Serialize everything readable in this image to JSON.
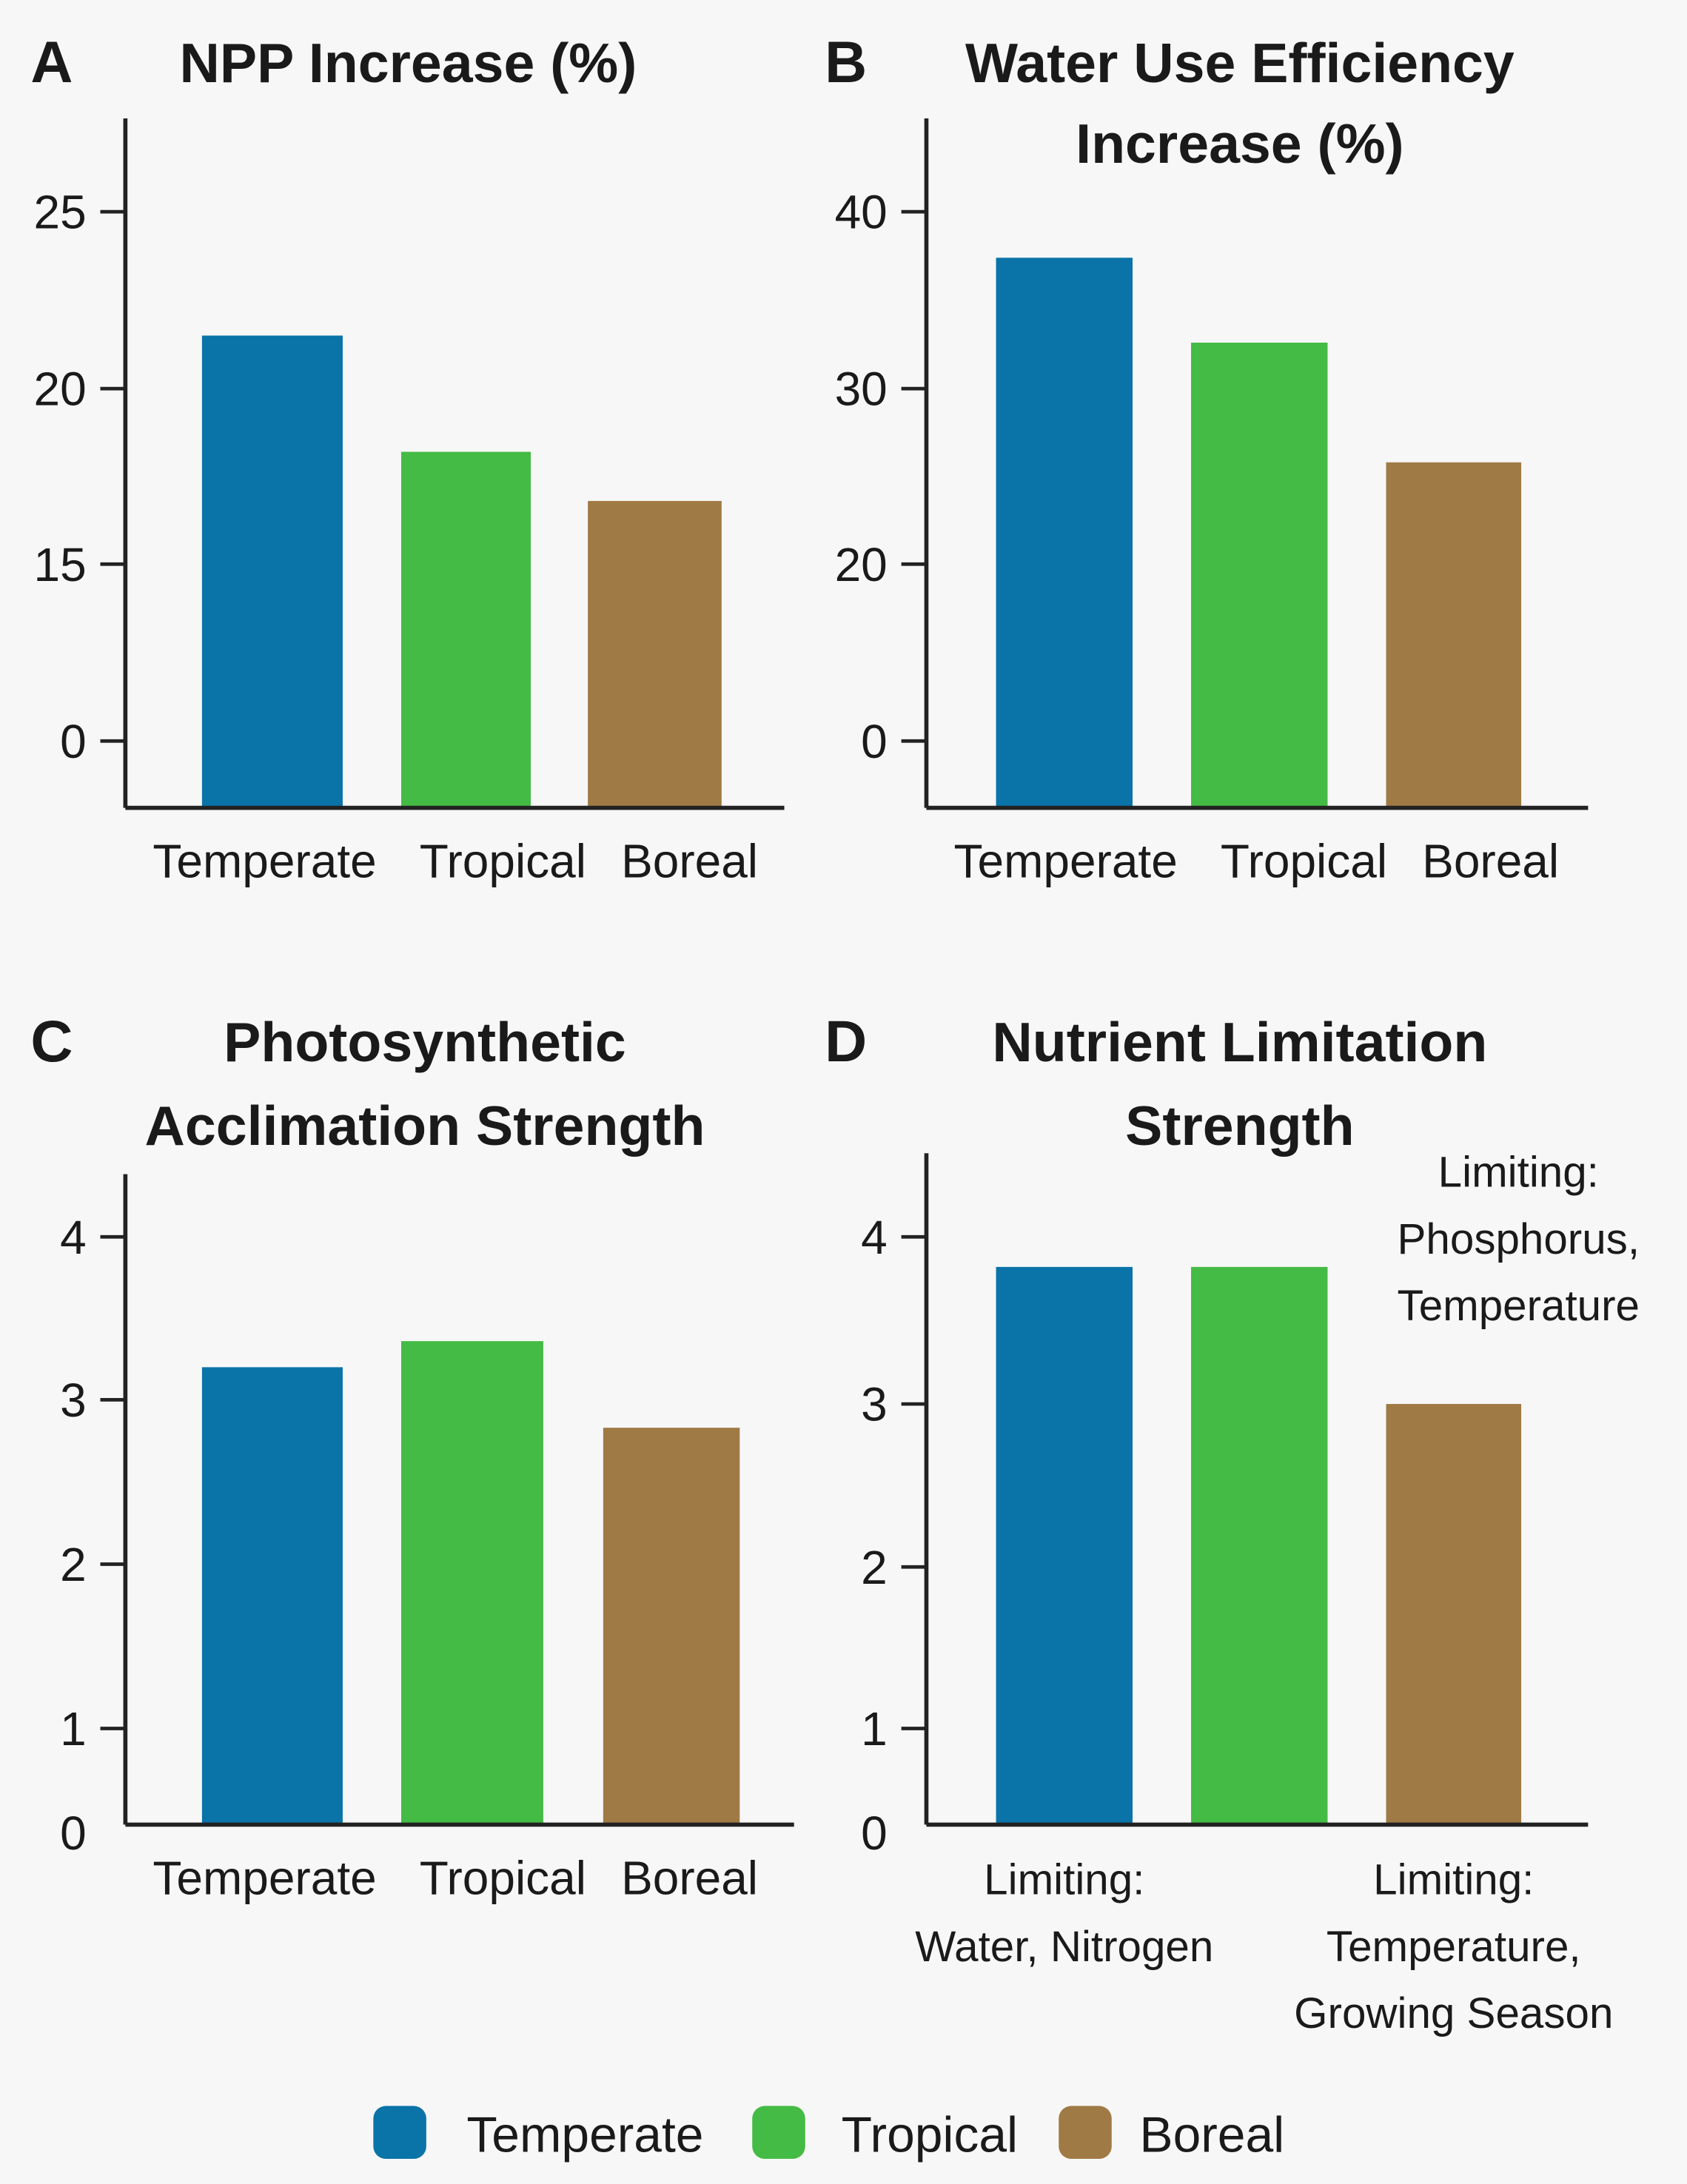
{
  "colors": {
    "Temperate": "#0a73a8",
    "Tropical": "#44bb44",
    "Boreal": "#a07a45",
    "background": "#f7f7f7"
  },
  "legend": [
    "Temperate",
    "Tropical",
    "Boreal"
  ],
  "chart_data": [
    {
      "type": "bar",
      "panel": "A",
      "title": [
        "NPP Increase (%)"
      ],
      "categories": [
        "Temperate",
        "Tropical",
        "Boreal"
      ],
      "xlabels": [
        "Temperate",
        "Tropical",
        "Boreal"
      ],
      "values": [
        21.5,
        18.2,
        16.8
      ],
      "yticks": [
        0,
        15,
        20,
        25
      ],
      "ytick_labels": [
        "0",
        "15",
        "20",
        "25"
      ],
      "ylabel": "",
      "xlabel": ""
    },
    {
      "type": "bar",
      "panel": "B",
      "title": [
        "Water Use Efficiency",
        "Increase (%)"
      ],
      "categories": [
        "Temperate",
        "Tropical",
        "Boreal"
      ],
      "xlabels": [
        "Temperate",
        "Tropical",
        "Boreal"
      ],
      "values": [
        37.4,
        32.6,
        25.8
      ],
      "yticks": [
        0,
        20,
        30,
        40
      ],
      "ytick_labels": [
        "0",
        "20",
        "30",
        "40"
      ],
      "ylabel": "",
      "xlabel": ""
    },
    {
      "type": "bar",
      "panel": "C",
      "title": [
        "Photosynthetic",
        "Acclimation Strength"
      ],
      "categories": [
        "Temperate",
        "Tropical",
        "Boreal"
      ],
      "xlabels": [
        "Temperate",
        "Tropical",
        "Boreal"
      ],
      "values": [
        3.2,
        3.36,
        2.83
      ],
      "yticks": [
        0,
        1,
        2,
        3,
        4
      ],
      "ytick_labels": [
        "0",
        "1",
        "2",
        "3",
        "4"
      ],
      "ylabel": "",
      "xlabel": ""
    },
    {
      "type": "bar",
      "panel": "D",
      "title": [
        "Nutrient Limitation",
        "Strength"
      ],
      "categories": [
        "Temperate",
        "Tropical",
        "Boreal"
      ],
      "xlabels": [
        [
          "Limiting:",
          "Water, Nitrogen"
        ],
        [],
        [
          "Limiting:",
          "Temperature,",
          "Growing Season"
        ]
      ],
      "annotation": [
        "Limiting:",
        "Phosphorus,",
        "Temperature"
      ],
      "values": [
        3.82,
        3.82,
        3.0
      ],
      "yticks": [
        0,
        1,
        2,
        3,
        4
      ],
      "ytick_labels": [
        "0",
        "1",
        "2",
        "3",
        "4"
      ],
      "ylabel": "",
      "xlabel": ""
    }
  ]
}
